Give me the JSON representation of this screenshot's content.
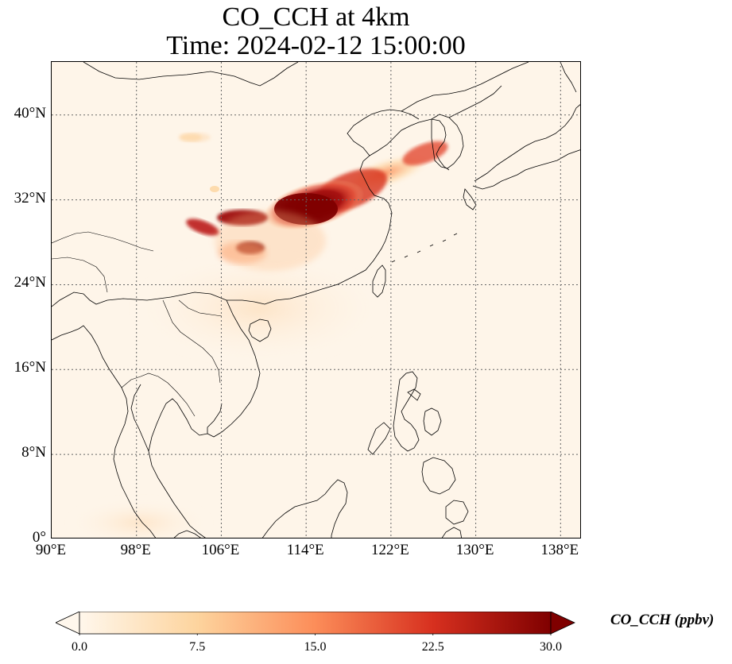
{
  "title": {
    "line1": "CO_CCH at 4km",
    "line2": "Time: 2024-02-12 15:00:00"
  },
  "map": {
    "projection": "PlateCarree",
    "lon_range": [
      90,
      140
    ],
    "lat_range": [
      0,
      45
    ],
    "gridlines": "dotted",
    "lat_ticks": [
      {
        "value": 40,
        "label": "40°N"
      },
      {
        "value": 32,
        "label": "32°N"
      },
      {
        "value": 24,
        "label": "24°N"
      },
      {
        "value": 16,
        "label": "16°N"
      },
      {
        "value": 8,
        "label": "8°N"
      },
      {
        "value": 0,
        "label": "0°"
      }
    ],
    "lon_ticks": [
      {
        "value": 90,
        "label": "90°E"
      },
      {
        "value": 98,
        "label": "98°E"
      },
      {
        "value": 106,
        "label": "106°E"
      },
      {
        "value": 114,
        "label": "114°E"
      },
      {
        "value": 122,
        "label": "122°E"
      },
      {
        "value": 130,
        "label": "130°E"
      },
      {
        "value": 138,
        "label": "138°E"
      }
    ],
    "background_color": "#fef5e9",
    "coastline_color": "#000000"
  },
  "colorbar": {
    "label": "CO_CCH (ppbv)",
    "colormap": "OrRd",
    "min": 0.0,
    "max": 30.0,
    "extend": "both",
    "ticks": [
      "0.0",
      "7.5",
      "15.0",
      "22.5",
      "30.0"
    ],
    "colors": [
      "#fff7ec",
      "#fdd49e",
      "#fc8d59",
      "#d7301f",
      "#7f0000"
    ]
  }
}
